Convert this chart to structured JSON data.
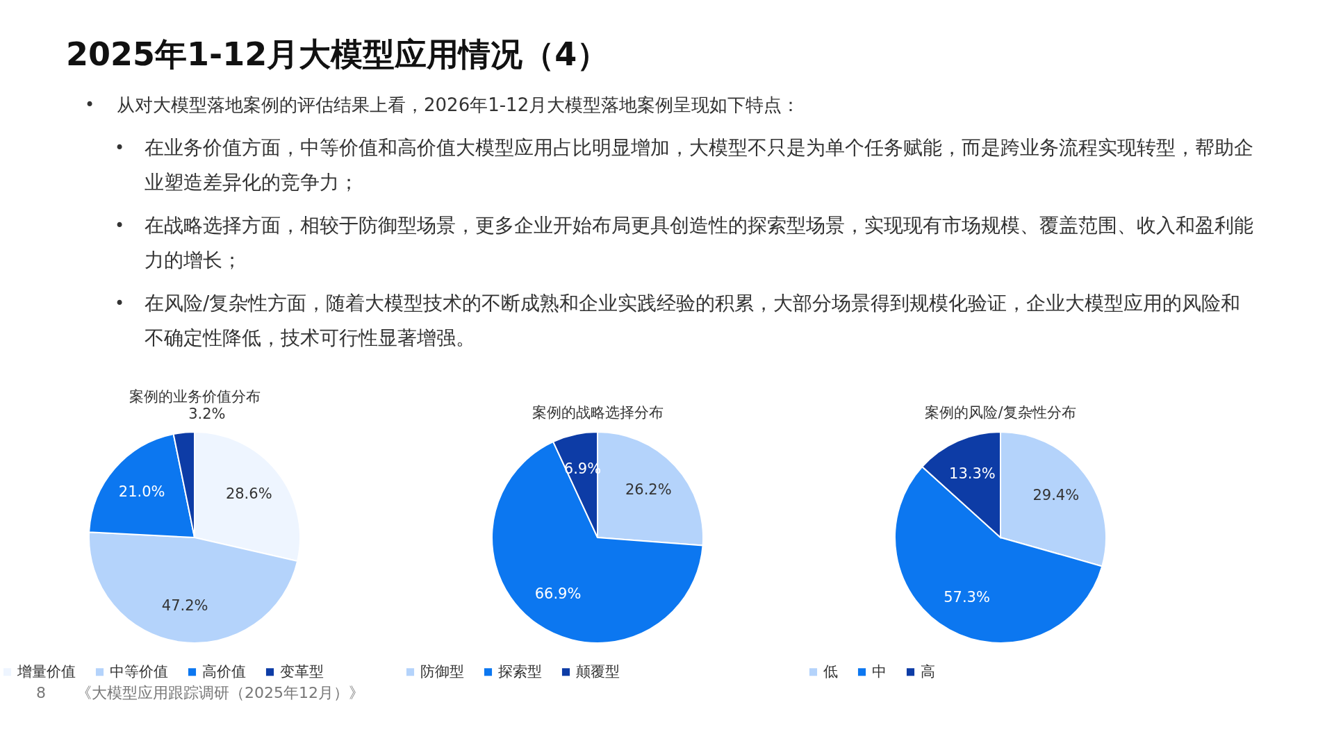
{
  "chart_data": [
    {
      "type": "other",
      "title": "2025年1-12月大模型应用情况（4）",
      "annotations": [
        "• 从对大模型落地案例的评估结果上看，2026年1-12月大模型落地案例呈现如下特点：",
        "• 在业务价值方面，中等价值和高价值大模型应用占比明显增加，大模型不只是为单个任务赋能，而是跨业务流程实现转型，帮助企业塑造差异化的竞争力；",
        "• 在战略选择方面，相较于防御型场景，更多企业开始布局更具创造性的探索型场景，实现现有市场规模、覆盖范围、收入和盈利能力的增长；",
        "• 在风险/复杂性方面，随着大模型技术的不断成熟和企业实践经验的积累，大部分场景得到规模化验证，企业大模型应用的风险和不确定性降低，技术可行性显著增强。",
        "8",
        "《大模型应用跟踪调研（2025年12月）》"
      ]
    },
    {
      "type": "pie",
      "title": "案例的业务价值分布",
      "categories": [
        "增量价值",
        "中等价值",
        "高价值",
        "变革型"
      ],
      "values": [
        28.6,
        47.2,
        21.0,
        3.2
      ],
      "colors": [
        "#eef5ff",
        "#b4d3fb",
        "#0c77f0",
        "#0d3ca6"
      ],
      "value_labels": [
        "28.6%",
        "47.2%",
        "21.0%",
        "3.2%"
      ],
      "legend": "bottom"
    },
    {
      "type": "pie",
      "title": "案例的战略选择分布",
      "categories": [
        "防御型",
        "探索型",
        "颠覆型"
      ],
      "values": [
        26.2,
        66.9,
        6.9
      ],
      "colors": [
        "#b4d3fb",
        "#0c77f0",
        "#0d3ca6"
      ],
      "value_labels": [
        "26.2%",
        "66.9%",
        "6.9%"
      ],
      "legend": "bottom"
    },
    {
      "type": "pie",
      "title": "案例的风险/复杂性分布",
      "categories": [
        "低",
        "中",
        "高"
      ],
      "values": [
        29.4,
        57.3,
        13.3
      ],
      "colors": [
        "#b4d3fb",
        "#0c77f0",
        "#0d3ca6"
      ],
      "value_labels": [
        "29.4%",
        "57.3%",
        "13.3%"
      ],
      "legend": "bottom"
    }
  ]
}
